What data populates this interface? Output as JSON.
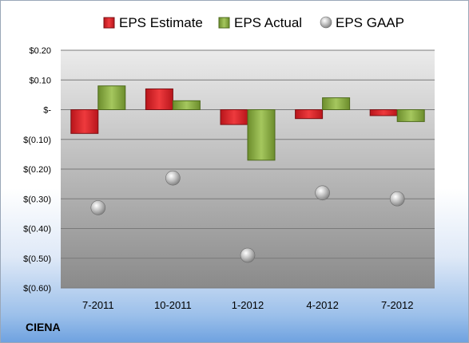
{
  "company": "CIENA",
  "colors": {
    "estimate": "#e0262a",
    "actual": "#8db443",
    "gaap": "#b5b5b5",
    "plot_top": "#ebebeb",
    "plot_bottom": "#8a8a8a"
  },
  "chart_data": {
    "type": "bar",
    "categories": [
      "7-2011",
      "10-2011",
      "1-2012",
      "4-2012",
      "7-2012"
    ],
    "series": [
      {
        "name": "EPS Estimate",
        "kind": "bar",
        "values": [
          -0.08,
          0.07,
          -0.05,
          -0.03,
          -0.02
        ]
      },
      {
        "name": "EPS Actual",
        "kind": "bar",
        "values": [
          0.08,
          0.03,
          -0.17,
          0.04,
          -0.04
        ]
      },
      {
        "name": "EPS GAAP",
        "kind": "point",
        "values": [
          -0.33,
          -0.23,
          -0.49,
          -0.28,
          -0.3
        ]
      }
    ],
    "ylim": [
      -0.6,
      0.2
    ],
    "yticks": [
      0.2,
      0.1,
      0,
      -0.1,
      -0.2,
      -0.3,
      -0.4,
      -0.5,
      -0.6
    ],
    "ytick_labels": [
      "$0.20",
      "$0.10",
      "$-",
      "$(0.10)",
      "$(0.20)",
      "$(0.30)",
      "$(0.40)",
      "$(0.50)",
      "$(0.60)"
    ],
    "grid": true,
    "legend_position": "top"
  }
}
